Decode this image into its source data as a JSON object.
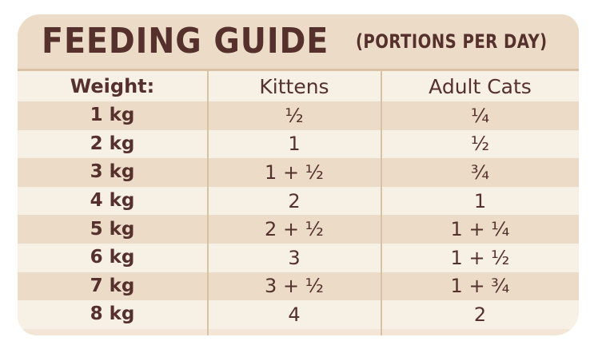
{
  "title": {
    "main": "FEEDING GUIDE",
    "sub": "(PORTIONS PER DAY)"
  },
  "table": {
    "headers": [
      "Weight:",
      "Kittens",
      "Adult Cats"
    ],
    "rows": [
      {
        "weight": "1 kg",
        "kittens": "½",
        "adults": "¼"
      },
      {
        "weight": "2 kg",
        "kittens": "1",
        "adults": "½"
      },
      {
        "weight": "3 kg",
        "kittens": "1 + ½",
        "adults": "¾"
      },
      {
        "weight": "4 kg",
        "kittens": "2",
        "adults": "1"
      },
      {
        "weight": "5 kg",
        "kittens": "2 + ½",
        "adults": "1 + ¼"
      },
      {
        "weight": "6 kg",
        "kittens": "3",
        "adults": "1 + ½"
      },
      {
        "weight": "7 kg",
        "kittens": "3 + ½",
        "adults": "1 + ¾"
      },
      {
        "weight": "8 kg",
        "kittens": "4",
        "adults": "2"
      }
    ]
  },
  "colors": {
    "text": "#55302c",
    "band_dark": "#ecdcc7",
    "band_light": "#f7f0e5",
    "divider": "#d9c2a4"
  }
}
